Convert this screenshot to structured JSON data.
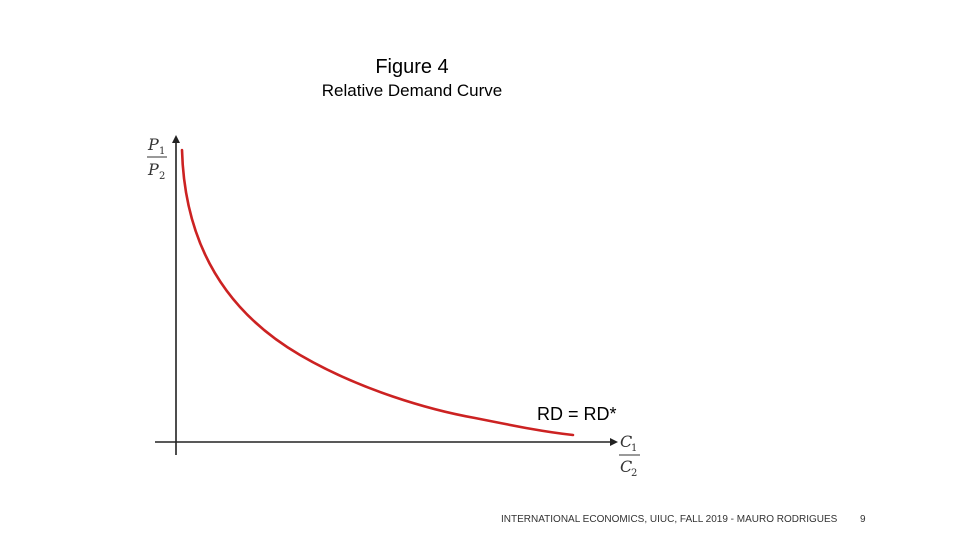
{
  "slide": {
    "title": "Figure 4",
    "subtitle": "Relative Demand Curve",
    "footer": "INTERNATIONAL ECONOMICS, UIUC, FALL 2019 - MAURO RODRIGUES",
    "page_number": "9"
  },
  "diagram": {
    "curve_label": "RD = RD*",
    "curve_color": "#cc2222",
    "axis_color": "#222222",
    "y_axis_label": {
      "numerator": "P",
      "numerator_sub": "1",
      "denominator": "P",
      "denominator_sub": "2"
    },
    "x_axis_label": {
      "numerator": "C",
      "numerator_sub": "1",
      "denominator": "C",
      "denominator_sub": "2"
    }
  }
}
